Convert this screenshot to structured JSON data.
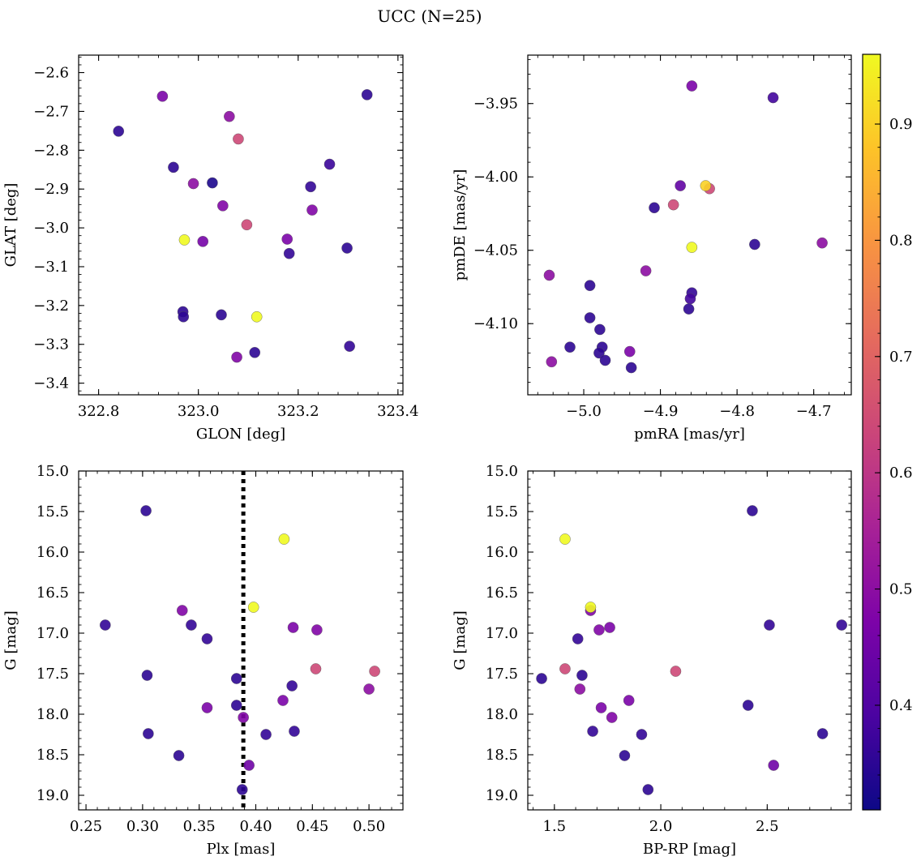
{
  "title": "UCC (N=25)",
  "colorbar": {
    "cmap": "plasma",
    "range": [
      0.31,
      0.96
    ],
    "ticks": [
      0.4,
      0.5,
      0.6,
      0.7,
      0.8,
      0.9
    ],
    "tick_labels": [
      "0.4",
      "0.5",
      "0.6",
      "0.7",
      "0.8",
      "0.9"
    ]
  },
  "chart_data": [
    {
      "id": "glon-glat",
      "type": "scatter",
      "xlabel": "GLON [deg]",
      "ylabel": "GLAT [deg]",
      "xlim": [
        322.76,
        323.41
      ],
      "ylim": [
        -3.43,
        -2.555
      ],
      "y_inverted": false,
      "xticks": [
        322.8,
        323.0,
        323.2,
        323.4
      ],
      "xtick_labels": [
        "322.8",
        "323.0",
        "323.2",
        "323.4"
      ],
      "yticks": [
        -2.6,
        -2.7,
        -2.8,
        -2.9,
        -3.0,
        -3.1,
        -3.2,
        -3.3,
        -3.4
      ],
      "ytick_labels": [
        "−2.6",
        "−2.7",
        "−2.8",
        "−2.9",
        "−3.0",
        "−3.1",
        "−3.2",
        "−3.3",
        "−3.4"
      ],
      "points": [
        {
          "x": 322.84,
          "y": -2.751,
          "c": 0.35
        },
        {
          "x": 322.928,
          "y": -2.661,
          "c": 0.47
        },
        {
          "x": 322.95,
          "y": -2.844,
          "c": 0.35
        },
        {
          "x": 322.99,
          "y": -2.886,
          "c": 0.5
        },
        {
          "x": 322.972,
          "y": -3.031,
          "c": 0.96
        },
        {
          "x": 323.009,
          "y": -3.035,
          "c": 0.46
        },
        {
          "x": 322.969,
          "y": -3.216,
          "c": 0.35
        },
        {
          "x": 322.97,
          "y": -3.229,
          "c": 0.35
        },
        {
          "x": 323.028,
          "y": -2.884,
          "c": 0.33
        },
        {
          "x": 323.062,
          "y": -2.713,
          "c": 0.5
        },
        {
          "x": 323.08,
          "y": -2.771,
          "c": 0.64
        },
        {
          "x": 323.049,
          "y": -2.943,
          "c": 0.48
        },
        {
          "x": 323.097,
          "y": -2.992,
          "c": 0.64
        },
        {
          "x": 323.046,
          "y": -3.224,
          "c": 0.35
        },
        {
          "x": 323.117,
          "y": -3.229,
          "c": 0.96
        },
        {
          "x": 323.113,
          "y": -3.321,
          "c": 0.35
        },
        {
          "x": 323.077,
          "y": -3.333,
          "c": 0.48
        },
        {
          "x": 323.178,
          "y": -3.029,
          "c": 0.47
        },
        {
          "x": 323.182,
          "y": -3.066,
          "c": 0.36
        },
        {
          "x": 323.225,
          "y": -2.894,
          "c": 0.36
        },
        {
          "x": 323.228,
          "y": -2.954,
          "c": 0.48
        },
        {
          "x": 323.263,
          "y": -2.836,
          "c": 0.37
        },
        {
          "x": 323.298,
          "y": -3.052,
          "c": 0.35
        },
        {
          "x": 323.303,
          "y": -3.305,
          "c": 0.36
        },
        {
          "x": 323.338,
          "y": -2.657,
          "c": 0.35
        }
      ]
    },
    {
      "id": "pmra-pmde",
      "type": "scatter",
      "xlabel": "pmRA [mas/yr]",
      "ylabel": "pmDE [mas/yr]",
      "xlim": [
        -5.073,
        -4.651
      ],
      "ylim": [
        -4.1485,
        -3.917
      ],
      "y_inverted": false,
      "xticks": [
        -5.0,
        -4.9,
        -4.8,
        -4.7
      ],
      "xtick_labels": [
        "−5.0",
        "−4.9",
        "−4.8",
        "−4.7"
      ],
      "yticks": [
        -3.95,
        -4.0,
        -4.05,
        -4.1
      ],
      "ytick_labels": [
        "−3.95",
        "−4.00",
        "−4.05",
        "−4.10"
      ],
      "points": [
        {
          "x": -4.859,
          "y": -3.938,
          "c": 0.47
        },
        {
          "x": -4.753,
          "y": -3.946,
          "c": 0.38
        },
        {
          "x": -4.874,
          "y": -4.006,
          "c": 0.43
        },
        {
          "x": -4.908,
          "y": -4.021,
          "c": 0.35
        },
        {
          "x": -4.883,
          "y": -4.019,
          "c": 0.64
        },
        {
          "x": -4.841,
          "y": -4.006,
          "c": 0.9
        },
        {
          "x": -4.836,
          "y": -4.008,
          "c": 0.64
        },
        {
          "x": -4.859,
          "y": -4.048,
          "c": 0.96
        },
        {
          "x": -4.777,
          "y": -4.046,
          "c": 0.35
        },
        {
          "x": -4.689,
          "y": -4.045,
          "c": 0.5
        },
        {
          "x": -5.045,
          "y": -4.067,
          "c": 0.5
        },
        {
          "x": -4.919,
          "y": -4.064,
          "c": 0.5
        },
        {
          "x": -4.992,
          "y": -4.074,
          "c": 0.35
        },
        {
          "x": -4.859,
          "y": -4.079,
          "c": 0.36
        },
        {
          "x": -4.861,
          "y": -4.083,
          "c": 0.38
        },
        {
          "x": -4.863,
          "y": -4.09,
          "c": 0.35
        },
        {
          "x": -4.992,
          "y": -4.096,
          "c": 0.35
        },
        {
          "x": -4.979,
          "y": -4.104,
          "c": 0.35
        },
        {
          "x": -5.018,
          "y": -4.116,
          "c": 0.35
        },
        {
          "x": -4.976,
          "y": -4.116,
          "c": 0.35
        },
        {
          "x": -4.98,
          "y": -4.12,
          "c": 0.35
        },
        {
          "x": -4.94,
          "y": -4.119,
          "c": 0.47
        },
        {
          "x": -4.972,
          "y": -4.125,
          "c": 0.35
        },
        {
          "x": -5.042,
          "y": -4.126,
          "c": 0.5
        },
        {
          "x": -4.938,
          "y": -4.13,
          "c": 0.35
        }
      ]
    },
    {
      "id": "plx-g",
      "type": "scatter",
      "xlabel": "Plx [mas]",
      "ylabel": "G [mag]",
      "xlim": [
        0.2435,
        0.53
      ],
      "ylim": [
        15.0,
        19.18
      ],
      "y_inverted": true,
      "vline": {
        "x": 0.389,
        "style": "dotted",
        "color": "#000000"
      },
      "xticks": [
        0.25,
        0.3,
        0.35,
        0.4,
        0.45,
        0.5
      ],
      "xtick_labels": [
        "0.25",
        "0.30",
        "0.35",
        "0.40",
        "0.45",
        "0.50"
      ],
      "yticks": [
        15.0,
        15.5,
        16.0,
        16.5,
        17.0,
        17.5,
        18.0,
        18.5,
        19.0
      ],
      "ytick_labels": [
        "15.0",
        "15.5",
        "16.0",
        "16.5",
        "17.0",
        "17.5",
        "18.0",
        "18.5",
        "19.0"
      ],
      "points": [
        {
          "x": 0.303,
          "y": 15.49,
          "c": 0.35
        },
        {
          "x": 0.425,
          "y": 15.84,
          "c": 0.96
        },
        {
          "x": 0.398,
          "y": 16.68,
          "c": 0.96
        },
        {
          "x": 0.335,
          "y": 16.72,
          "c": 0.48
        },
        {
          "x": 0.267,
          "y": 16.9,
          "c": 0.36
        },
        {
          "x": 0.343,
          "y": 16.9,
          "c": 0.36
        },
        {
          "x": 0.433,
          "y": 16.93,
          "c": 0.47
        },
        {
          "x": 0.454,
          "y": 16.96,
          "c": 0.48
        },
        {
          "x": 0.357,
          "y": 17.07,
          "c": 0.36
        },
        {
          "x": 0.453,
          "y": 17.44,
          "c": 0.64
        },
        {
          "x": 0.505,
          "y": 17.47,
          "c": 0.64
        },
        {
          "x": 0.304,
          "y": 17.52,
          "c": 0.35
        },
        {
          "x": 0.383,
          "y": 17.56,
          "c": 0.35
        },
        {
          "x": 0.432,
          "y": 17.65,
          "c": 0.36
        },
        {
          "x": 0.5,
          "y": 17.69,
          "c": 0.5
        },
        {
          "x": 0.424,
          "y": 17.83,
          "c": 0.47
        },
        {
          "x": 0.383,
          "y": 17.89,
          "c": 0.35
        },
        {
          "x": 0.357,
          "y": 17.92,
          "c": 0.47
        },
        {
          "x": 0.389,
          "y": 18.04,
          "c": 0.48
        },
        {
          "x": 0.305,
          "y": 18.24,
          "c": 0.35
        },
        {
          "x": 0.409,
          "y": 18.25,
          "c": 0.36
        },
        {
          "x": 0.434,
          "y": 18.21,
          "c": 0.36
        },
        {
          "x": 0.332,
          "y": 18.51,
          "c": 0.35
        },
        {
          "x": 0.394,
          "y": 18.63,
          "c": 0.45
        },
        {
          "x": 0.388,
          "y": 18.93,
          "c": 0.35
        }
      ]
    },
    {
      "id": "bprp-g",
      "type": "scatter",
      "xlabel": "BP-RP [mag]",
      "ylabel": "G [mag]",
      "xlim": [
        1.375,
        2.895
      ],
      "ylim": [
        15.0,
        19.18
      ],
      "y_inverted": true,
      "xticks": [
        1.5,
        2.0,
        2.5
      ],
      "xtick_labels": [
        "1.5",
        "2.0",
        "2.5"
      ],
      "yticks": [
        15.0,
        15.5,
        16.0,
        16.5,
        17.0,
        17.5,
        18.0,
        18.5,
        19.0
      ],
      "ytick_labels": [
        "15.0",
        "15.5",
        "16.0",
        "16.5",
        "17.0",
        "17.5",
        "18.0",
        "18.5",
        "19.0"
      ],
      "points": [
        {
          "x": 2.43,
          "y": 15.49,
          "c": 0.35
        },
        {
          "x": 1.55,
          "y": 15.84,
          "c": 0.96
        },
        {
          "x": 1.67,
          "y": 16.68,
          "c": 0.96
        },
        {
          "x": 1.67,
          "y": 16.72,
          "c": 0.48
        },
        {
          "x": 1.71,
          "y": 16.96,
          "c": 0.48
        },
        {
          "x": 1.76,
          "y": 16.93,
          "c": 0.47
        },
        {
          "x": 2.51,
          "y": 16.9,
          "c": 0.36
        },
        {
          "x": 2.85,
          "y": 16.9,
          "c": 0.36
        },
        {
          "x": 1.61,
          "y": 17.07,
          "c": 0.36
        },
        {
          "x": 1.55,
          "y": 17.44,
          "c": 0.64
        },
        {
          "x": 2.07,
          "y": 17.47,
          "c": 0.64
        },
        {
          "x": 1.44,
          "y": 17.56,
          "c": 0.35
        },
        {
          "x": 1.63,
          "y": 17.52,
          "c": 0.35
        },
        {
          "x": 1.62,
          "y": 17.69,
          "c": 0.5
        },
        {
          "x": 1.85,
          "y": 17.83,
          "c": 0.47
        },
        {
          "x": 2.41,
          "y": 17.89,
          "c": 0.35
        },
        {
          "x": 1.72,
          "y": 17.92,
          "c": 0.47
        },
        {
          "x": 1.77,
          "y": 18.04,
          "c": 0.48
        },
        {
          "x": 1.68,
          "y": 18.21,
          "c": 0.36
        },
        {
          "x": 1.91,
          "y": 18.25,
          "c": 0.36
        },
        {
          "x": 2.76,
          "y": 18.24,
          "c": 0.35
        },
        {
          "x": 1.83,
          "y": 18.51,
          "c": 0.35
        },
        {
          "x": 2.53,
          "y": 18.63,
          "c": 0.45
        },
        {
          "x": 1.94,
          "y": 18.93,
          "c": 0.35
        }
      ]
    }
  ]
}
